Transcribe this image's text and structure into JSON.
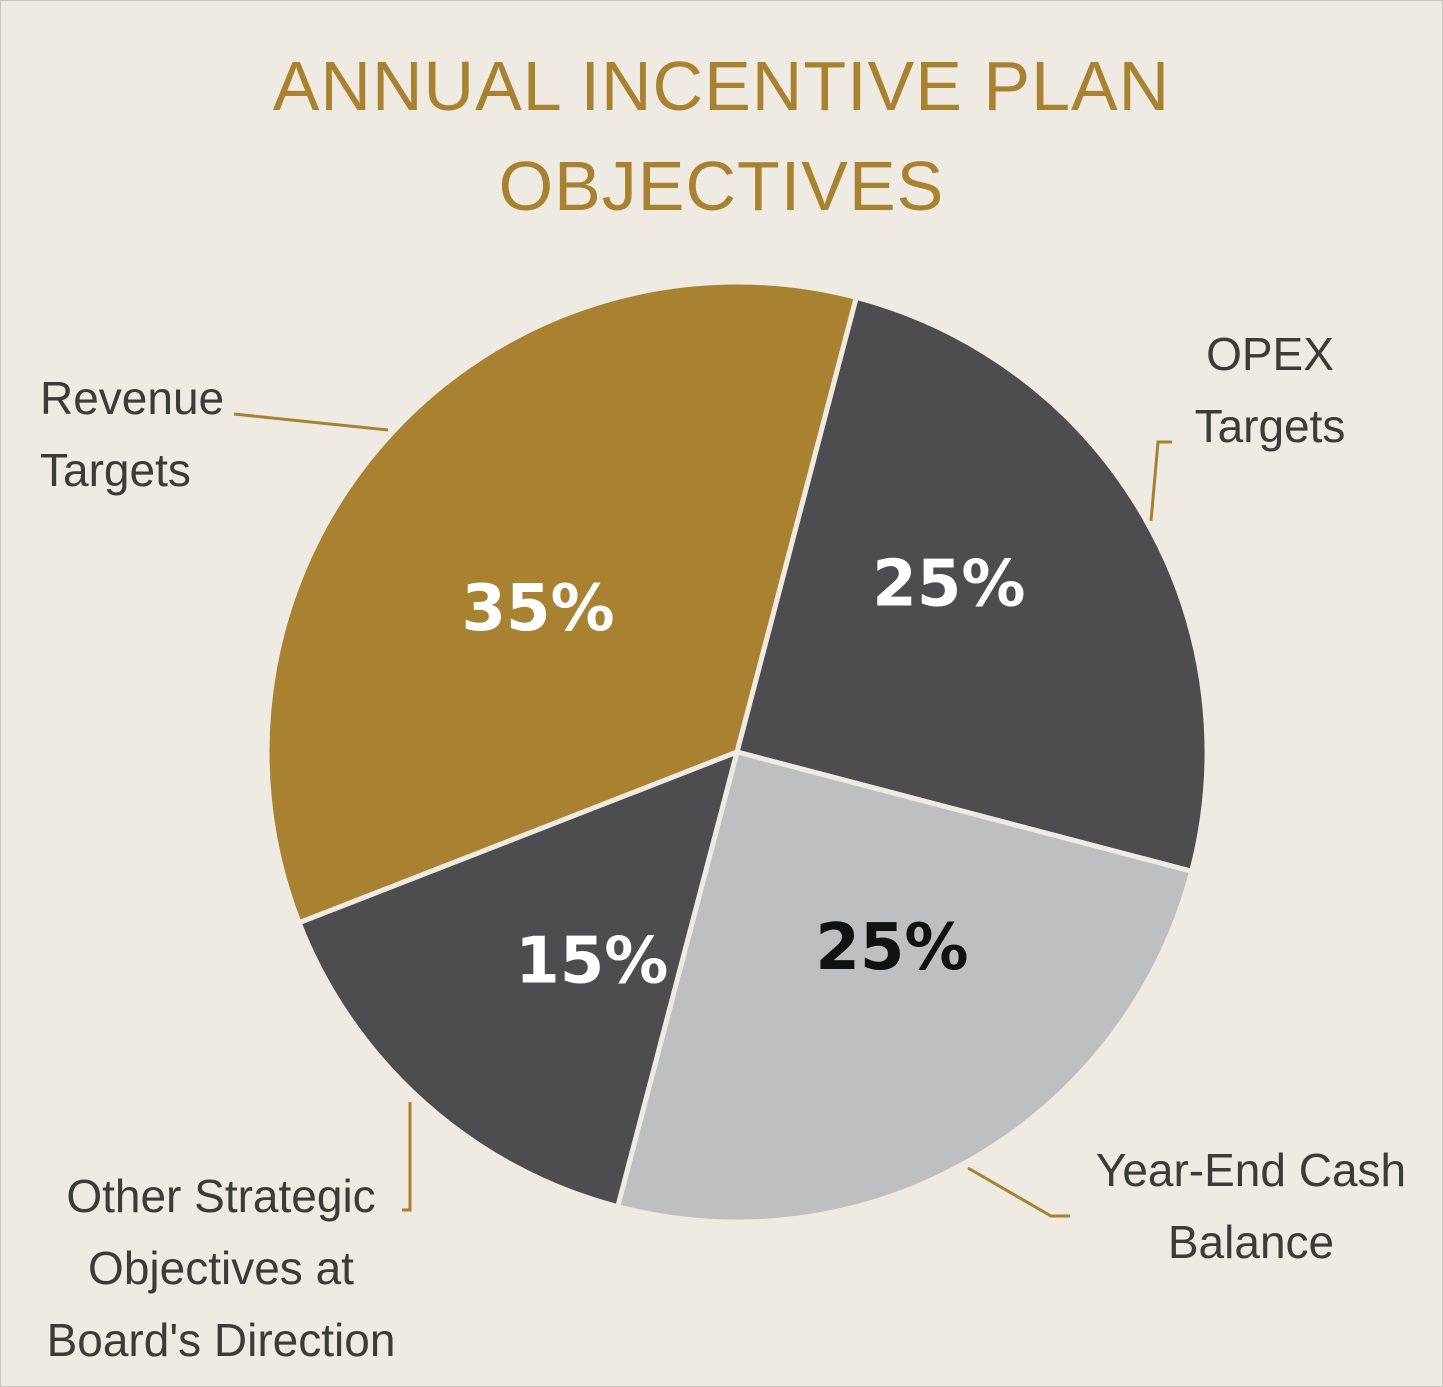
{
  "chart_data": {
    "type": "pie",
    "title_lines": [
      "ANNUAL INCENTIVE PLAN",
      "OBJECTIVES"
    ],
    "slices": [
      {
        "name": "revenue",
        "label_lines": [
          "Revenue",
          "Targets"
        ],
        "value": 35,
        "display": "35%",
        "color": "#a88231",
        "text_color": "#ffffff"
      },
      {
        "name": "opex",
        "label_lines": [
          "OPEX",
          "Targets"
        ],
        "value": 25,
        "display": "25%",
        "color": "#4d4d4f",
        "text_color": "#ffffff"
      },
      {
        "name": "cash",
        "label_lines": [
          "Year-End Cash",
          "Balance"
        ],
        "value": 25,
        "display": "25%",
        "color": "#bebfc1",
        "text_color": "#111111"
      },
      {
        "name": "other",
        "label_lines": [
          "Other Strategic",
          "Objectives at",
          "Board's Direction"
        ],
        "value": 15,
        "display": "15%",
        "color": "#4d4d4f",
        "text_color": "#ffffff"
      }
    ],
    "start_slice": "opex",
    "direction": "clockwise",
    "legend": "none",
    "leader_color": "#a88231"
  }
}
